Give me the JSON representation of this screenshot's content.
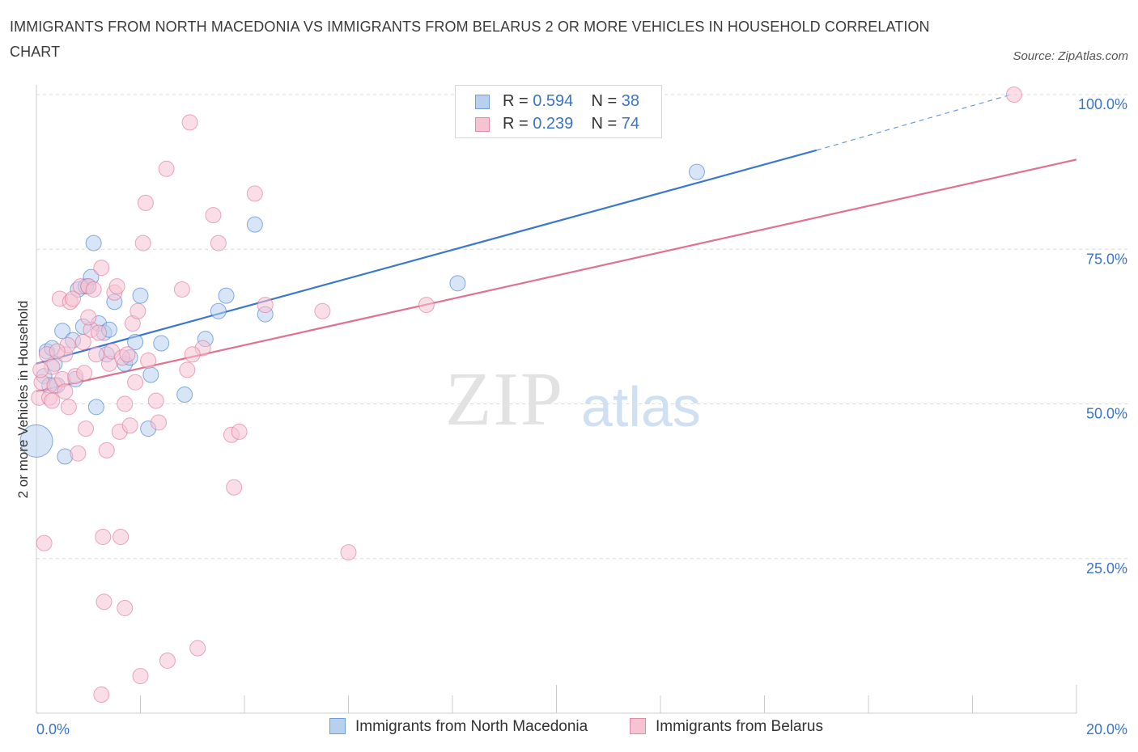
{
  "title": "IMMIGRANTS FROM NORTH MACEDONIA VS IMMIGRANTS FROM BELARUS 2 OR MORE VEHICLES IN HOUSEHOLD CORRELATION CHART",
  "source": "Source: ZipAtlas.com",
  "watermark": {
    "zip": "ZIP",
    "atlas": "atlas"
  },
  "legend": {
    "series1": {
      "r_label": "R = ",
      "r": "0.594",
      "n_label": "N = ",
      "n": "38"
    },
    "series2": {
      "r_label": "R = ",
      "r": "0.239",
      "n_label": "N = ",
      "n": "74"
    }
  },
  "chart_data": {
    "type": "scatter",
    "xlabel": "",
    "ylabel": "2 or more Vehicles in Household",
    "xlim": [
      0,
      20
    ],
    "ylim": [
      0,
      100
    ],
    "x_tick_labels": [
      {
        "value": 0,
        "label": "0.0%"
      },
      {
        "value": 20,
        "label": "20.0%"
      }
    ],
    "y_tick_labels": [
      {
        "value": 100,
        "label": "100.0%"
      },
      {
        "value": 75,
        "label": "75.0%"
      },
      {
        "value": 50,
        "label": "50.0%"
      },
      {
        "value": 25,
        "label": "25.0%"
      }
    ],
    "grid": true,
    "series": [
      {
        "name": "Immigrants from North Macedonia",
        "color": "#3a78cf",
        "fill": "#b7d0f0",
        "trend": {
          "x0": 0.0,
          "y0": 56.5,
          "x1": 15.0,
          "y1": 91.0,
          "dashed_to_x": 18.7,
          "dashed_to_y": 99.9
        },
        "points": [
          {
            "x": 0.0,
            "y": 44.0,
            "size": "large"
          },
          {
            "x": 0.15,
            "y": 54.5
          },
          {
            "x": 0.2,
            "y": 58.5
          },
          {
            "x": 0.3,
            "y": 59.0
          },
          {
            "x": 0.35,
            "y": 56.5
          },
          {
            "x": 0.4,
            "y": 53.0
          },
          {
            "x": 0.5,
            "y": 61.8
          },
          {
            "x": 0.55,
            "y": 41.5
          },
          {
            "x": 0.7,
            "y": 60.3
          },
          {
            "x": 0.75,
            "y": 54.0
          },
          {
            "x": 0.8,
            "y": 68.5
          },
          {
            "x": 0.9,
            "y": 62.5
          },
          {
            "x": 0.95,
            "y": 69.0
          },
          {
            "x": 1.0,
            "y": 69.0
          },
          {
            "x": 1.05,
            "y": 70.5
          },
          {
            "x": 1.1,
            "y": 76.0
          },
          {
            "x": 1.15,
            "y": 49.5
          },
          {
            "x": 1.2,
            "y": 63.0
          },
          {
            "x": 1.3,
            "y": 61.5
          },
          {
            "x": 1.35,
            "y": 58.0
          },
          {
            "x": 1.4,
            "y": 62.0
          },
          {
            "x": 1.5,
            "y": 66.5
          },
          {
            "x": 1.7,
            "y": 56.5
          },
          {
            "x": 1.8,
            "y": 57.5
          },
          {
            "x": 1.9,
            "y": 60.0
          },
          {
            "x": 2.0,
            "y": 67.5
          },
          {
            "x": 2.15,
            "y": 46.0
          },
          {
            "x": 2.2,
            "y": 54.7
          },
          {
            "x": 2.4,
            "y": 59.8
          },
          {
            "x": 2.85,
            "y": 51.5
          },
          {
            "x": 3.25,
            "y": 60.5
          },
          {
            "x": 3.5,
            "y": 65.0
          },
          {
            "x": 3.65,
            "y": 67.5
          },
          {
            "x": 4.2,
            "y": 79.0
          },
          {
            "x": 4.4,
            "y": 64.5
          },
          {
            "x": 8.1,
            "y": 69.5
          },
          {
            "x": 12.7,
            "y": 87.5
          },
          {
            "x": 0.25,
            "y": 53.0
          }
        ]
      },
      {
        "name": "Immigrants from Belarus",
        "color": "#e0718f",
        "fill": "#f6c3d3",
        "trend": {
          "x0": 0.0,
          "y0": 52.0,
          "x1": 20.0,
          "y1": 89.5
        },
        "points": [
          {
            "x": 0.05,
            "y": 51.0
          },
          {
            "x": 0.1,
            "y": 53.5
          },
          {
            "x": 0.15,
            "y": 27.5
          },
          {
            "x": 0.2,
            "y": 58.0
          },
          {
            "x": 0.25,
            "y": 51.0
          },
          {
            "x": 0.3,
            "y": 56.0
          },
          {
            "x": 0.35,
            "y": 53.0
          },
          {
            "x": 0.45,
            "y": 67.0
          },
          {
            "x": 0.5,
            "y": 54.0
          },
          {
            "x": 0.55,
            "y": 58.0
          },
          {
            "x": 0.6,
            "y": 59.5
          },
          {
            "x": 0.62,
            "y": 49.5
          },
          {
            "x": 0.65,
            "y": 66.5
          },
          {
            "x": 0.7,
            "y": 67.0
          },
          {
            "x": 0.75,
            "y": 54.5
          },
          {
            "x": 0.8,
            "y": 42.0
          },
          {
            "x": 0.85,
            "y": 69.0
          },
          {
            "x": 0.9,
            "y": 60.0
          },
          {
            "x": 0.92,
            "y": 55.0
          },
          {
            "x": 0.95,
            "y": 46.0
          },
          {
            "x": 1.0,
            "y": 69.0
          },
          {
            "x": 1.05,
            "y": 62.0
          },
          {
            "x": 1.1,
            "y": 68.5
          },
          {
            "x": 1.15,
            "y": 58.0
          },
          {
            "x": 1.2,
            "y": 61.5
          },
          {
            "x": 1.25,
            "y": 72.0
          },
          {
            "x": 1.28,
            "y": 28.5
          },
          {
            "x": 1.3,
            "y": 18.0
          },
          {
            "x": 1.35,
            "y": 42.5
          },
          {
            "x": 1.4,
            "y": 56.5
          },
          {
            "x": 1.45,
            "y": 58.5
          },
          {
            "x": 1.5,
            "y": 68.0
          },
          {
            "x": 1.55,
            "y": 69.0
          },
          {
            "x": 1.6,
            "y": 45.5
          },
          {
            "x": 1.62,
            "y": 28.5
          },
          {
            "x": 1.65,
            "y": 57.5
          },
          {
            "x": 1.7,
            "y": 17.0
          },
          {
            "x": 1.75,
            "y": 58.0
          },
          {
            "x": 1.8,
            "y": 46.5
          },
          {
            "x": 1.85,
            "y": 63.0
          },
          {
            "x": 1.9,
            "y": 53.5
          },
          {
            "x": 1.95,
            "y": 65.0
          },
          {
            "x": 2.0,
            "y": 6.0
          },
          {
            "x": 2.05,
            "y": 76.0
          },
          {
            "x": 2.1,
            "y": 82.5
          },
          {
            "x": 2.15,
            "y": 57.0
          },
          {
            "x": 2.3,
            "y": 50.5
          },
          {
            "x": 2.35,
            "y": 47.0
          },
          {
            "x": 2.5,
            "y": 88.0
          },
          {
            "x": 2.52,
            "y": 8.5
          },
          {
            "x": 2.8,
            "y": 68.5
          },
          {
            "x": 2.9,
            "y": 55.5
          },
          {
            "x": 2.95,
            "y": 95.5
          },
          {
            "x": 3.1,
            "y": 10.5
          },
          {
            "x": 3.2,
            "y": 59.0
          },
          {
            "x": 3.4,
            "y": 80.5
          },
          {
            "x": 3.5,
            "y": 76.0
          },
          {
            "x": 3.75,
            "y": 45.0
          },
          {
            "x": 3.8,
            "y": 36.5
          },
          {
            "x": 3.9,
            "y": 45.5
          },
          {
            "x": 4.2,
            "y": 84.0
          },
          {
            "x": 4.4,
            "y": 66.0
          },
          {
            "x": 5.5,
            "y": 65.0
          },
          {
            "x": 6.0,
            "y": 26.0
          },
          {
            "x": 7.5,
            "y": 66.0
          },
          {
            "x": 18.8,
            "y": 100.0
          },
          {
            "x": 0.08,
            "y": 55.5
          },
          {
            "x": 0.4,
            "y": 58.5
          },
          {
            "x": 1.25,
            "y": 3.0
          },
          {
            "x": 0.55,
            "y": 52.0
          },
          {
            "x": 1.0,
            "y": 64.0
          },
          {
            "x": 1.7,
            "y": 50.0
          },
          {
            "x": 3.0,
            "y": 58.0
          },
          {
            "x": 0.3,
            "y": 50.5
          }
        ]
      }
    ]
  }
}
